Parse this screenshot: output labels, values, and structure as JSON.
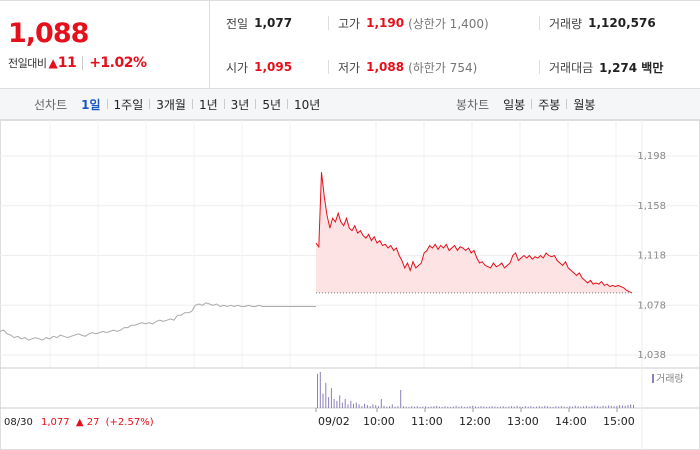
{
  "quote": {
    "price": "1,088",
    "change_label": "전일대비",
    "change_arrow": "▲",
    "change_amount": "11",
    "change_rate": "+1.02%"
  },
  "stats": {
    "prev_close": {
      "label": "전일",
      "value": "1,077"
    },
    "high": {
      "label": "고가",
      "value": "1,190",
      "extra": "(상한가 1,400)"
    },
    "volume": {
      "label": "거래량",
      "value": "1,120,576"
    },
    "open": {
      "label": "시가",
      "value": "1,095"
    },
    "low": {
      "label": "저가",
      "value": "1,088",
      "extra": "(하한가 754)"
    },
    "trade_value": {
      "label": "거래대금",
      "value": "1,274 백만"
    }
  },
  "tabs": {
    "line_label": "선차트",
    "line_items": [
      "1일",
      "1주일",
      "3개월",
      "1년",
      "3년",
      "5년",
      "10년"
    ],
    "line_active": 0,
    "candle_label": "봉차트",
    "candle_items": [
      "일봉",
      "주봉",
      "월봉"
    ]
  },
  "colors": {
    "up": "#e5101c",
    "active_tab": "#1a58c0",
    "prev_line": "#aaaaaa",
    "area_fill": "#fde3e4",
    "volume_bar": "#8c7fb8"
  },
  "chart_data": {
    "type": "line",
    "y_ticks": [
      "1,198",
      "1,158",
      "1,118",
      "1,078",
      "1,038"
    ],
    "ylim": [
      1038,
      1198
    ],
    "grid": true,
    "x_ticks": [
      "09/02",
      "10:00",
      "11:00",
      "12:00",
      "13:00",
      "14:00",
      "15:00"
    ],
    "volume_legend": "거래량",
    "prev_day": {
      "date": "08/30",
      "close": "1,077",
      "arrow": "▲",
      "change": "27",
      "rate": "(+2.57%)",
      "values": [
        1057,
        1058,
        1055,
        1054,
        1052,
        1053,
        1051,
        1052,
        1050,
        1051,
        1052,
        1051,
        1050,
        1052,
        1051,
        1053,
        1052,
        1054,
        1053,
        1052,
        1053,
        1054,
        1055,
        1054,
        1053,
        1055,
        1056,
        1055,
        1056,
        1057,
        1056,
        1057,
        1058,
        1057,
        1058,
        1060,
        1060,
        1062,
        1062,
        1063,
        1064,
        1063,
        1064,
        1063,
        1065,
        1066,
        1065,
        1066,
        1067,
        1066,
        1070,
        1070,
        1072,
        1072,
        1073,
        1078,
        1079,
        1078,
        1080,
        1079,
        1078,
        1079,
        1077,
        1078,
        1077,
        1078,
        1077,
        1078,
        1077,
        1077,
        1078,
        1077,
        1077,
        1078,
        1077,
        1077,
        1077,
        1077,
        1077,
        1077,
        1077,
        1077,
        1077,
        1077,
        1077,
        1077,
        1077,
        1077,
        1077,
        1077
      ]
    },
    "today": {
      "close": 1088,
      "values": [
        1128,
        1125,
        1185,
        1165,
        1150,
        1140,
        1148,
        1145,
        1152,
        1145,
        1142,
        1148,
        1140,
        1138,
        1142,
        1136,
        1138,
        1134,
        1132,
        1135,
        1130,
        1133,
        1128,
        1130,
        1126,
        1127,
        1124,
        1126,
        1122,
        1124,
        1118,
        1114,
        1108,
        1112,
        1106,
        1113,
        1108,
        1110,
        1112,
        1120,
        1122,
        1126,
        1124,
        1127,
        1123,
        1126,
        1124,
        1127,
        1122,
        1124,
        1126,
        1122,
        1125,
        1124,
        1122,
        1124,
        1120,
        1122,
        1116,
        1112,
        1113,
        1110,
        1109,
        1108,
        1112,
        1109,
        1110,
        1112,
        1108,
        1110,
        1112,
        1118,
        1120,
        1114,
        1116,
        1118,
        1116,
        1118,
        1115,
        1117,
        1116,
        1118,
        1116,
        1120,
        1118,
        1117,
        1118,
        1114,
        1112,
        1110,
        1113,
        1108,
        1106,
        1104,
        1102,
        1104,
        1100,
        1098,
        1096,
        1098,
        1095,
        1096,
        1095,
        1097,
        1094,
        1095,
        1093,
        1094,
        1093,
        1094,
        1093,
        1092,
        1090,
        1089,
        1088
      ]
    },
    "volume": [
      0.95,
      1,
      0.4,
      0.7,
      0.3,
      0.55,
      0.25,
      0.2,
      0.35,
      0.15,
      0.25,
      0.1,
      0.2,
      0.12,
      0.15,
      0.1,
      0.05,
      0.12,
      0.08,
      0.05,
      0.1,
      0.08,
      0.05,
      0.25,
      0.06,
      0.04,
      0.05,
      0.1,
      0.04,
      0.05,
      0.5,
      0.05,
      0.04,
      0.03,
      0.05,
      0.04,
      0.05,
      0.03,
      0.04,
      0.05,
      0.03,
      0.04,
      0.05,
      0.06,
      0.04,
      0.03,
      0.05,
      0.04,
      0.03,
      0.04,
      0.06,
      0.04,
      0.05,
      0.03,
      0.04,
      0.05,
      0.06,
      0.04,
      0.03,
      0.05,
      0.04,
      0.03,
      0.04,
      0.05,
      0.04,
      0.03,
      0.04,
      0.05,
      0.03,
      0.04,
      0.05,
      0.04,
      0.06,
      0.04,
      0.03,
      0.05,
      0.04,
      0.05,
      0.03,
      0.04,
      0.05,
      0.04,
      0.06,
      0.05,
      0.04,
      0.03,
      0.05,
      0.04,
      0.05,
      0.04,
      0.03,
      0.05,
      0.04,
      0.06,
      0.05,
      0.04,
      0.05,
      0.06,
      0.04,
      0.05,
      0.06,
      0.05,
      0.04,
      0.06,
      0.05,
      0.07,
      0.06,
      0.05,
      0.06,
      0.08,
      0.07,
      0.06,
      0.08,
      0.1,
      0.09
    ]
  }
}
